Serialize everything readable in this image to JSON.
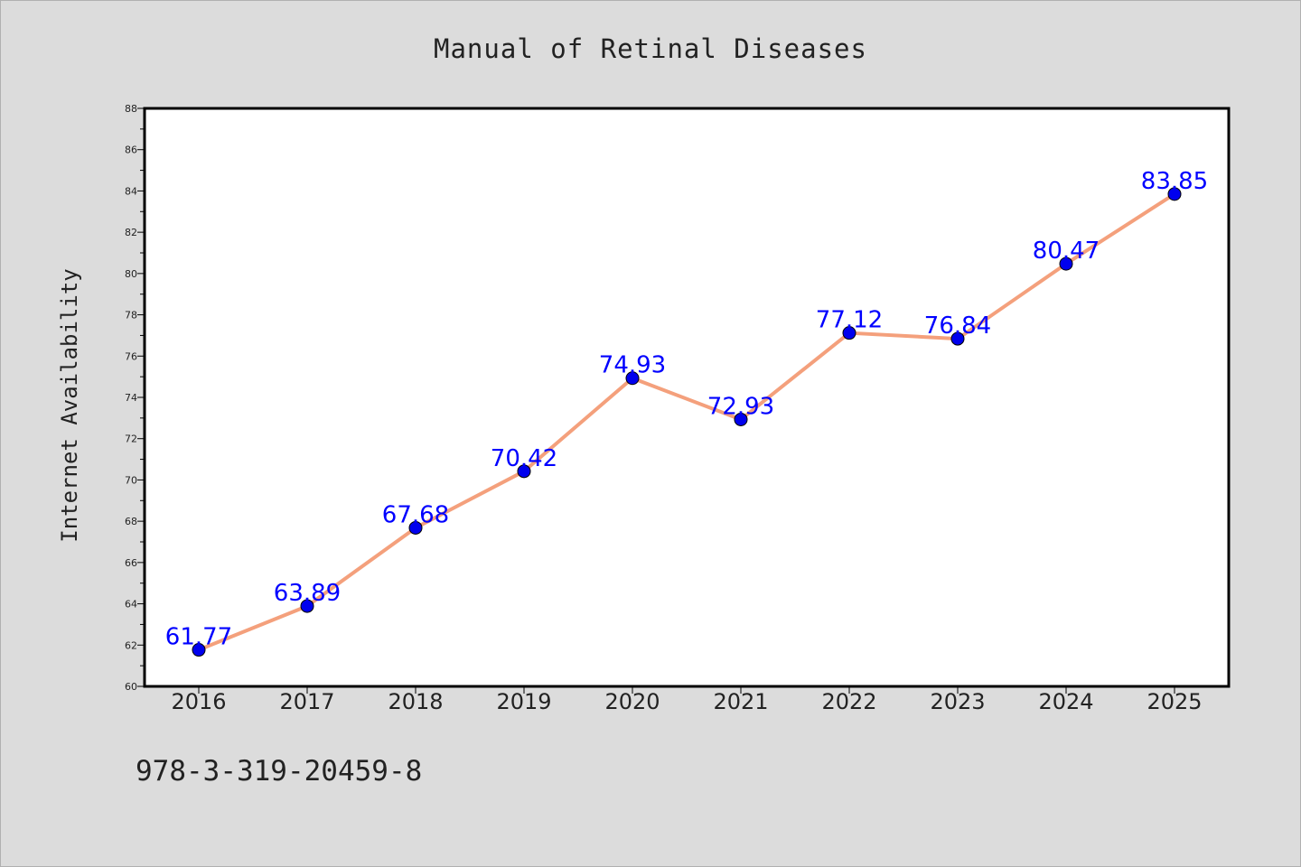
{
  "chart_data": {
    "type": "line",
    "title": "Manual of Retinal Diseases",
    "xlabel": "",
    "ylabel": "Internet Availability",
    "categories": [
      "2016",
      "2017",
      "2018",
      "2019",
      "2020",
      "2021",
      "2022",
      "2023",
      "2024",
      "2025"
    ],
    "series": [
      {
        "values": [
          61.77,
          63.89,
          67.68,
          70.42,
          74.93,
          72.93,
          77.12,
          76.84,
          80.47,
          83.85
        ],
        "labels": [
          "61.77",
          "63.89",
          "67.68",
          "70.42",
          "74.93",
          "72.93",
          "77.12",
          "76.84",
          "80.47",
          "83.85"
        ],
        "line_color": "#f4a07c",
        "marker_color": "#0000ee",
        "label_color": "#0000ff"
      }
    ],
    "ylim": [
      60,
      88
    ],
    "yticks": [
      "60",
      "62",
      "64",
      "66",
      "68",
      "70",
      "72",
      "74",
      "76",
      "78",
      "80",
      "82",
      "84",
      "86",
      "88"
    ],
    "grid": false,
    "legend": "none"
  },
  "annotation": "978-3-319-20459-8",
  "colors": {
    "background": "#dcdcdc",
    "plot_background": "#ffffff",
    "axes": "#000000"
  }
}
